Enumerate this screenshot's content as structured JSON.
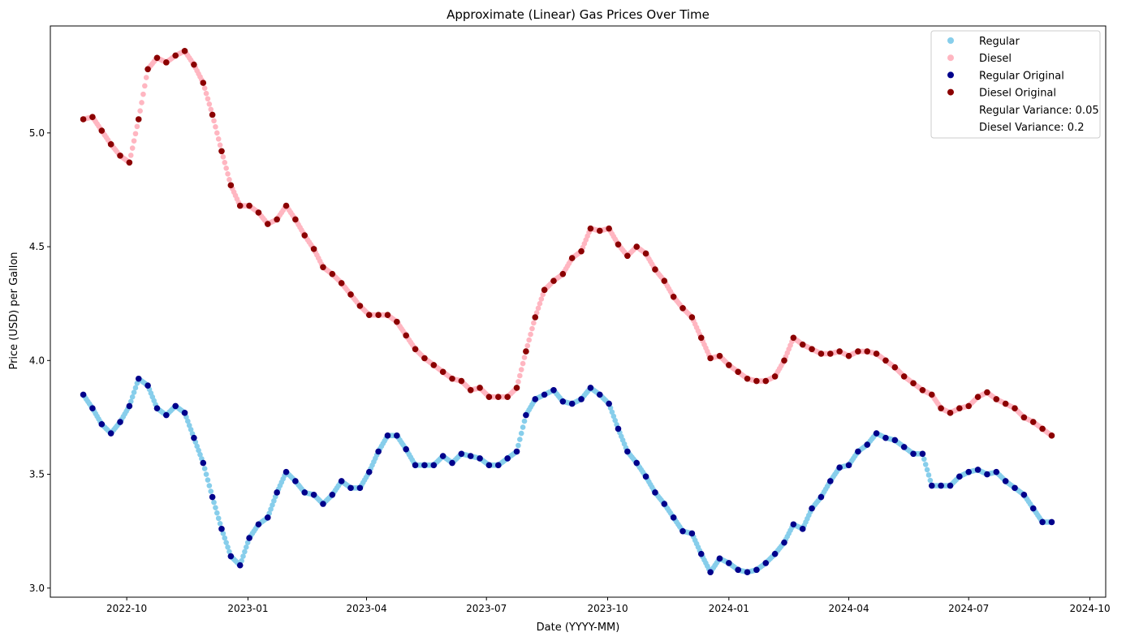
{
  "chart_data": {
    "type": "scatter",
    "title": "Approximate (Linear) Gas Prices Over Time",
    "xlabel": "Date (YYYY-MM)",
    "ylabel": "Price (USD) per Gallon",
    "xlim": [
      "2022-08-04",
      "2024-10-13"
    ],
    "ylim": [
      2.96,
      5.47
    ],
    "x_ticks": [
      "2022-10-01",
      "2023-01-01",
      "2023-04-01",
      "2023-07-01",
      "2023-10-01",
      "2024-01-01",
      "2024-04-01",
      "2024-07-01",
      "2024-10-01"
    ],
    "x_tick_labels": [
      "2022-10",
      "2023-01",
      "2023-04",
      "2023-07",
      "2023-10",
      "2024-01",
      "2024-04",
      "2024-07",
      "2024-10"
    ],
    "y_ticks": [
      3.0,
      3.5,
      4.0,
      4.5,
      5.0
    ],
    "y_tick_labels": [
      "3.0",
      "3.5",
      "4.0",
      "4.5",
      "5.0"
    ],
    "grid": false,
    "legend_position": "top-right",
    "dates": [
      "2022-08-29",
      "2022-09-05",
      "2022-09-12",
      "2022-09-19",
      "2022-09-26",
      "2022-10-03",
      "2022-10-10",
      "2022-10-17",
      "2022-10-24",
      "2022-10-31",
      "2022-11-07",
      "2022-11-14",
      "2022-11-21",
      "2022-11-28",
      "2022-12-05",
      "2022-12-12",
      "2022-12-19",
      "2022-12-26",
      "2023-01-02",
      "2023-01-09",
      "2023-01-16",
      "2023-01-23",
      "2023-01-30",
      "2023-02-06",
      "2023-02-13",
      "2023-02-20",
      "2023-02-27",
      "2023-03-06",
      "2023-03-13",
      "2023-03-20",
      "2023-03-27",
      "2023-04-03",
      "2023-04-10",
      "2023-04-17",
      "2023-04-24",
      "2023-05-01",
      "2023-05-08",
      "2023-05-15",
      "2023-05-22",
      "2023-05-29",
      "2023-06-05",
      "2023-06-12",
      "2023-06-19",
      "2023-06-26",
      "2023-07-03",
      "2023-07-10",
      "2023-07-17",
      "2023-07-24",
      "2023-07-31",
      "2023-08-07",
      "2023-08-14",
      "2023-08-21",
      "2023-08-28",
      "2023-09-04",
      "2023-09-11",
      "2023-09-18",
      "2023-09-25",
      "2023-10-02",
      "2023-10-09",
      "2023-10-16",
      "2023-10-23",
      "2023-10-30",
      "2023-11-06",
      "2023-11-13",
      "2023-11-20",
      "2023-11-27",
      "2023-12-04",
      "2023-12-11",
      "2023-12-18",
      "2023-12-25",
      "2024-01-01",
      "2024-01-08",
      "2024-01-15",
      "2024-01-22",
      "2024-01-29",
      "2024-02-05",
      "2024-02-12",
      "2024-02-19",
      "2024-02-26",
      "2024-03-04",
      "2024-03-11",
      "2024-03-18",
      "2024-03-25",
      "2024-04-01",
      "2024-04-08",
      "2024-04-15",
      "2024-04-22",
      "2024-04-29",
      "2024-05-06",
      "2024-05-13",
      "2024-05-20",
      "2024-05-27",
      "2024-06-03",
      "2024-06-10",
      "2024-06-17",
      "2024-06-24",
      "2024-07-01",
      "2024-07-08",
      "2024-07-15",
      "2024-07-22",
      "2024-07-29",
      "2024-08-05",
      "2024-08-12",
      "2024-08-19",
      "2024-08-26",
      "2024-09-02"
    ],
    "series": [
      {
        "name": "Regular",
        "color": "#87ceeb",
        "kind": "interpolated",
        "base": "Regular Original",
        "samples_per_interval": 6
      },
      {
        "name": "Diesel",
        "color": "#ffb6c1",
        "kind": "interpolated",
        "base": "Diesel Original",
        "samples_per_interval": 6
      },
      {
        "name": "Regular Original",
        "color": "#00008b",
        "kind": "original",
        "values": [
          3.85,
          3.79,
          3.72,
          3.68,
          3.73,
          3.8,
          3.92,
          3.89,
          3.79,
          3.76,
          3.8,
          3.77,
          3.66,
          3.55,
          3.4,
          3.26,
          3.14,
          3.1,
          3.22,
          3.28,
          3.31,
          3.42,
          3.51,
          3.47,
          3.42,
          3.41,
          3.37,
          3.41,
          3.47,
          3.44,
          3.44,
          3.51,
          3.6,
          3.67,
          3.67,
          3.61,
          3.54,
          3.54,
          3.54,
          3.58,
          3.55,
          3.59,
          3.58,
          3.57,
          3.54,
          3.54,
          3.57,
          3.6,
          3.76,
          3.83,
          3.85,
          3.87,
          3.82,
          3.81,
          3.83,
          3.88,
          3.85,
          3.81,
          3.7,
          3.6,
          3.55,
          3.49,
          3.42,
          3.37,
          3.31,
          3.25,
          3.24,
          3.15,
          3.07,
          3.13,
          3.11,
          3.08,
          3.07,
          3.08,
          3.11,
          3.15,
          3.2,
          3.28,
          3.26,
          3.35,
          3.4,
          3.47,
          3.53,
          3.54,
          3.6,
          3.63,
          3.68,
          3.66,
          3.65,
          3.62,
          3.59,
          3.59,
          3.45,
          3.45,
          3.45,
          3.49,
          3.51,
          3.52,
          3.5,
          3.51,
          3.47,
          3.44,
          3.41,
          3.35,
          3.29,
          3.29
        ]
      },
      {
        "name": "Diesel Original",
        "color": "#8b0000",
        "kind": "original",
        "values": [
          5.06,
          5.07,
          5.01,
          4.95,
          4.9,
          4.87,
          5.06,
          5.28,
          5.33,
          5.31,
          5.34,
          5.36,
          5.3,
          5.22,
          5.08,
          4.92,
          4.77,
          4.68,
          4.68,
          4.65,
          4.6,
          4.62,
          4.68,
          4.62,
          4.55,
          4.49,
          4.41,
          4.38,
          4.34,
          4.29,
          4.24,
          4.2,
          4.2,
          4.2,
          4.17,
          4.11,
          4.05,
          4.01,
          3.98,
          3.95,
          3.92,
          3.91,
          3.87,
          3.88,
          3.84,
          3.84,
          3.84,
          3.88,
          4.04,
          4.19,
          4.31,
          4.35,
          4.38,
          4.45,
          4.48,
          4.58,
          4.57,
          4.58,
          4.51,
          4.46,
          4.5,
          4.47,
          4.4,
          4.35,
          4.28,
          4.23,
          4.19,
          4.1,
          4.01,
          4.02,
          3.98,
          3.95,
          3.92,
          3.91,
          3.91,
          3.93,
          4.0,
          4.1,
          4.07,
          4.05,
          4.03,
          4.03,
          4.04,
          4.02,
          4.04,
          4.04,
          4.03,
          4.0,
          3.97,
          3.93,
          3.9,
          3.87,
          3.85,
          3.79,
          3.77,
          3.79,
          3.8,
          3.84,
          3.86,
          3.83,
          3.81,
          3.79,
          3.75,
          3.73,
          3.7,
          3.67
        ]
      }
    ],
    "legend": [
      {
        "label": "Regular",
        "color": "#87ceeb"
      },
      {
        "label": "Diesel",
        "color": "#ffb6c1"
      },
      {
        "label": "Regular Original",
        "color": "#00008b"
      },
      {
        "label": "Diesel Original",
        "color": "#8b0000"
      },
      {
        "label": "Regular Variance: 0.05",
        "color": ""
      },
      {
        "label": "Diesel Variance: 0.2",
        "color": ""
      }
    ]
  }
}
